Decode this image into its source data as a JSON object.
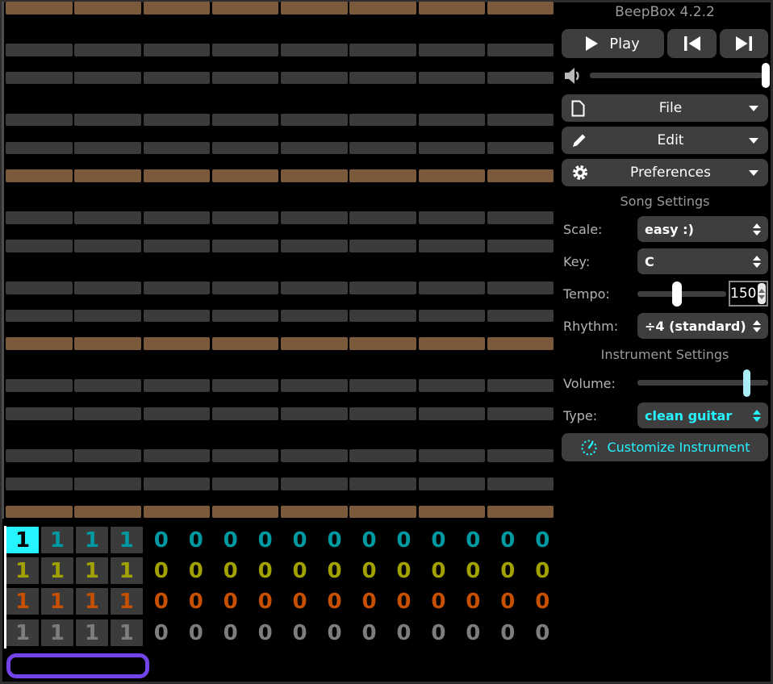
{
  "app": {
    "title": "BeepBox 4.2.2"
  },
  "transport": {
    "play_label": "Play"
  },
  "volume": {
    "slider_pos": 1.0
  },
  "menus": {
    "file": {
      "label": "File"
    },
    "edit": {
      "label": "Edit"
    },
    "preferences": {
      "label": "Preferences"
    }
  },
  "song_settings": {
    "section_title": "Song Settings",
    "scale_label": "Scale:",
    "scale_value": "easy :)",
    "key_label": "Key:",
    "key_value": "C",
    "tempo_label": "Tempo:",
    "tempo_value": "150",
    "tempo_slider_pos": 0.45,
    "rhythm_label": "Rhythm:",
    "rhythm_value": "÷4 (standard)"
  },
  "instrument_settings": {
    "section_title": "Instrument Settings",
    "volume_label": "Volume:",
    "volume_slider_pos": 0.87,
    "type_label": "Type:",
    "type_value": "clean guitar",
    "customize_label": "Customize Instrument",
    "accent_color": "#25f3ff"
  },
  "pattern_editor": {
    "num_rows": 37,
    "beats_per_bar": 8,
    "octave_row_pattern": [
      "tonic",
      "off",
      "off",
      "scale",
      "off",
      "scale",
      "off",
      "off",
      "scale",
      "off",
      "scale",
      "off"
    ],
    "colors": {
      "tonic": "#7b5a3b",
      "scale": "#3b3b3b",
      "off": "transparent"
    }
  },
  "track_editor": {
    "boxed_bars": 4,
    "active_cell": {
      "channel": 0,
      "bar": 0
    },
    "active_bg": "#25f3ff",
    "channels": [
      {
        "name": "pitch-channel-1",
        "color": "#0099a1",
        "cells": [
          1,
          1,
          1,
          1,
          0,
          0,
          0,
          0,
          0,
          0,
          0,
          0,
          0,
          0,
          0,
          0
        ]
      },
      {
        "name": "pitch-channel-2",
        "color": "#a1a100",
        "cells": [
          1,
          1,
          1,
          1,
          0,
          0,
          0,
          0,
          0,
          0,
          0,
          0,
          0,
          0,
          0,
          0
        ]
      },
      {
        "name": "pitch-channel-3",
        "color": "#c75000",
        "cells": [
          1,
          1,
          1,
          1,
          0,
          0,
          0,
          0,
          0,
          0,
          0,
          0,
          0,
          0,
          0,
          0
        ]
      },
      {
        "name": "noise-channel",
        "color": "#7d7d7d",
        "cells": [
          1,
          1,
          1,
          1,
          0,
          0,
          0,
          0,
          0,
          0,
          0,
          0,
          0,
          0,
          0,
          0
        ]
      }
    ]
  }
}
